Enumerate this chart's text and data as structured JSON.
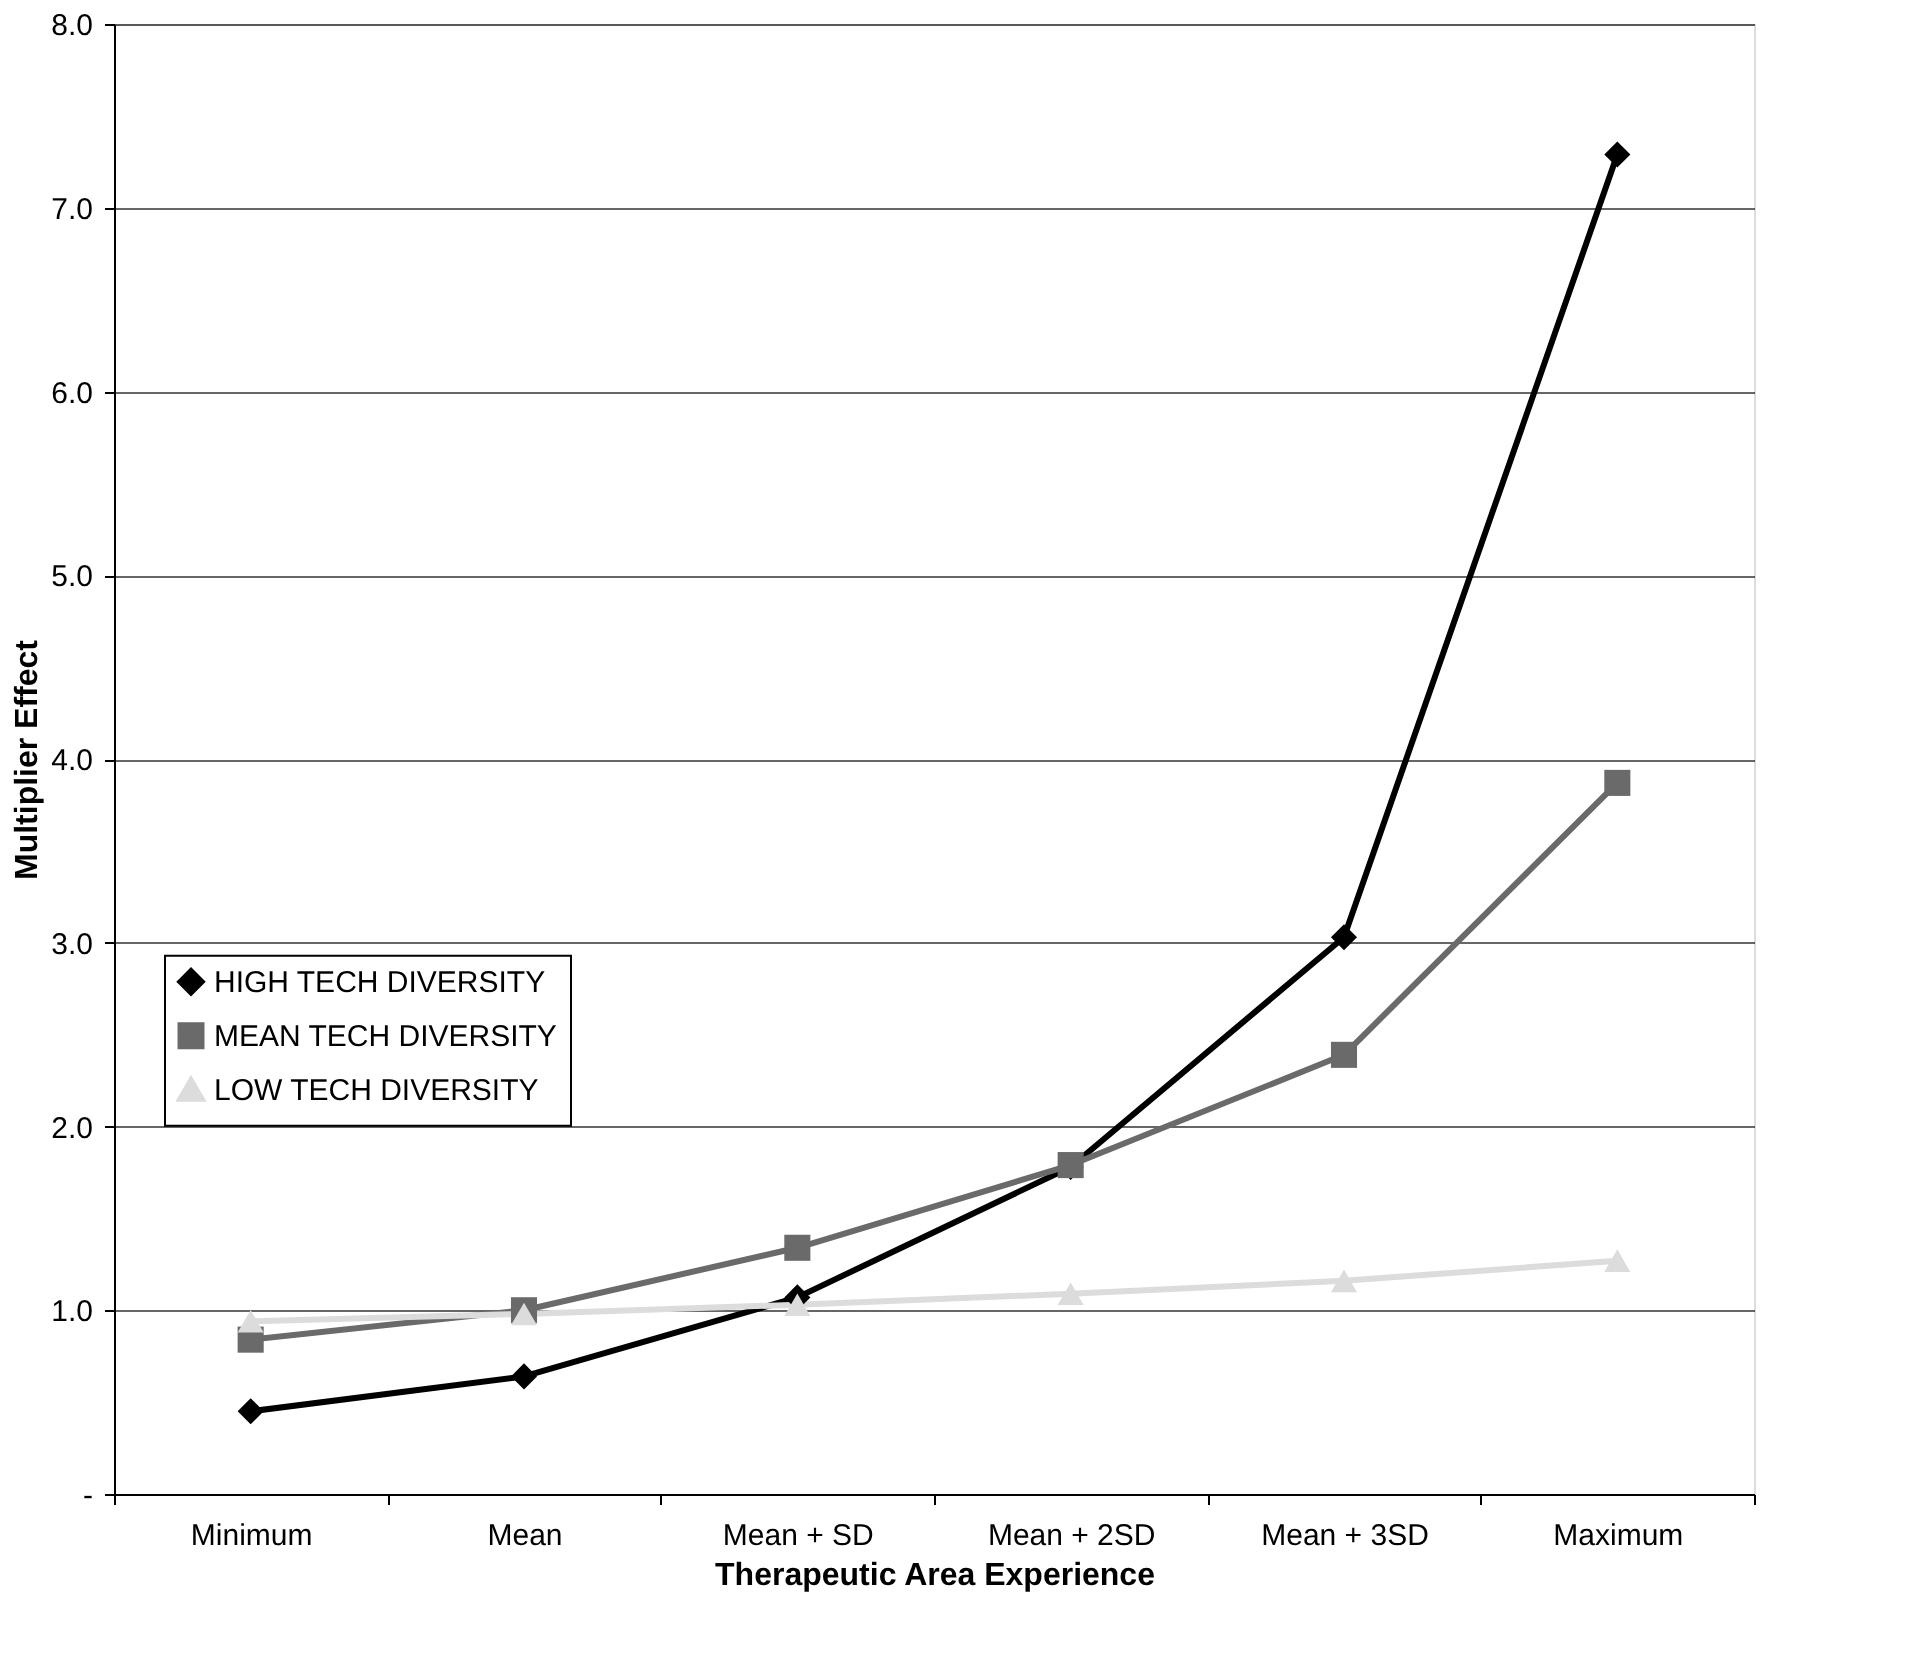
{
  "chart_data": {
    "type": "line",
    "xlabel": "Therapeutic Area Experience",
    "ylabel": "Multiplier Effect",
    "categories": [
      "Minimum",
      "Mean",
      "Mean + SD",
      "Mean + 2SD",
      "Mean + 3SD",
      "Maximum"
    ],
    "series": [
      {
        "name": "HIGH TECH DIVERSITY",
        "color": "#000000",
        "marker": "diamond",
        "values": [
          0.45,
          0.64,
          1.07,
          1.78,
          3.03,
          7.29
        ]
      },
      {
        "name": "MEAN TECH DIVERSITY",
        "color": "#6a6a6a",
        "marker": "square",
        "values": [
          0.84,
          1.0,
          1.34,
          1.79,
          2.39,
          3.87
        ]
      },
      {
        "name": "LOW TECH DIVERSITY",
        "color": "#dcdcdc",
        "marker": "triangle",
        "values": [
          0.94,
          0.98,
          1.03,
          1.09,
          1.16,
          1.27
        ]
      }
    ],
    "ylim": [
      0,
      8
    ],
    "yticks": [
      {
        "value": 0,
        "label": "-"
      },
      {
        "value": 1,
        "label": "1.0"
      },
      {
        "value": 2,
        "label": "2.0"
      },
      {
        "value": 3,
        "label": "3.0"
      },
      {
        "value": 4,
        "label": "4.0"
      },
      {
        "value": 5,
        "label": "5.0"
      },
      {
        "value": 6,
        "label": "6.0"
      },
      {
        "value": 7,
        "label": "7.0"
      },
      {
        "value": 8,
        "label": "8.0"
      }
    ],
    "grid": "y",
    "legend": "left",
    "line_style": "solid"
  }
}
